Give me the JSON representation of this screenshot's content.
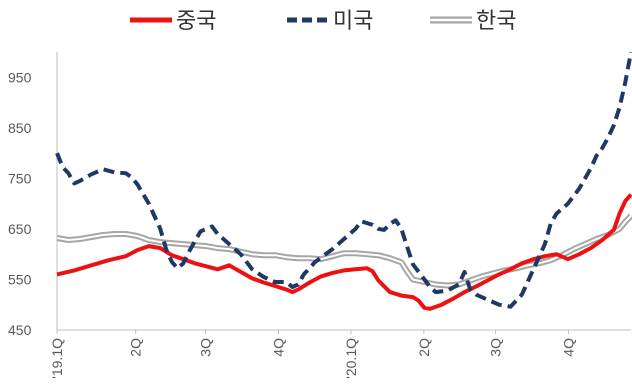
{
  "chart_data": {
    "type": "line",
    "title": "",
    "xlabel": "",
    "ylabel": "",
    "ylim": [
      450,
      1000
    ],
    "yticks": [
      450,
      550,
      650,
      750,
      850,
      950
    ],
    "grid": false,
    "legend_position": "top-center",
    "x_range": [
      0,
      100
    ],
    "x_tick_labels": [
      {
        "label": "'19.1Q",
        "x": 0
      },
      {
        "label": "2Q",
        "x": 13.7
      },
      {
        "label": "3Q",
        "x": 25.9
      },
      {
        "label": "4Q",
        "x": 38.6
      },
      {
        "label": "'20.1Q",
        "x": 51.2
      },
      {
        "label": "2Q",
        "x": 63.9
      },
      {
        "label": "3Q",
        "x": 76.4
      },
      {
        "label": "4Q",
        "x": 89.1
      }
    ],
    "series": [
      {
        "name": "중국",
        "color": "#ee1111",
        "style": "solid",
        "points": [
          [
            0,
            560
          ],
          [
            3,
            568
          ],
          [
            6,
            578
          ],
          [
            9,
            588
          ],
          [
            12,
            596
          ],
          [
            14,
            608
          ],
          [
            16,
            616
          ],
          [
            18,
            612
          ],
          [
            20,
            598
          ],
          [
            22,
            590
          ],
          [
            24,
            582
          ],
          [
            26,
            576
          ],
          [
            28,
            570
          ],
          [
            30,
            578
          ],
          [
            32,
            565
          ],
          [
            34,
            552
          ],
          [
            36,
            544
          ],
          [
            38,
            537
          ],
          [
            40,
            530
          ],
          [
            41,
            525
          ],
          [
            42,
            530
          ],
          [
            44,
            544
          ],
          [
            46,
            556
          ],
          [
            48,
            563
          ],
          [
            50,
            568
          ],
          [
            52,
            570
          ],
          [
            54,
            572
          ],
          [
            55,
            566
          ],
          [
            56,
            548
          ],
          [
            58,
            525
          ],
          [
            60,
            518
          ],
          [
            62,
            515
          ],
          [
            63,
            508
          ],
          [
            64,
            494
          ],
          [
            65,
            492
          ],
          [
            67,
            500
          ],
          [
            69,
            512
          ],
          [
            71,
            525
          ],
          [
            73,
            536
          ],
          [
            75,
            548
          ],
          [
            77,
            560
          ],
          [
            79,
            570
          ],
          [
            81,
            582
          ],
          [
            83,
            590
          ],
          [
            85,
            596
          ],
          [
            87,
            600
          ],
          [
            89,
            590
          ],
          [
            91,
            600
          ],
          [
            93,
            612
          ],
          [
            95,
            628
          ],
          [
            97,
            648
          ],
          [
            98,
            680
          ],
          [
            99,
            705
          ],
          [
            100,
            718
          ]
        ]
      },
      {
        "name": "미국",
        "color": "#1f3864",
        "style": "dashed",
        "points": [
          [
            0,
            800
          ],
          [
            1,
            772
          ],
          [
            2,
            760
          ],
          [
            3,
            740
          ],
          [
            4,
            745
          ],
          [
            6,
            758
          ],
          [
            8,
            768
          ],
          [
            10,
            762
          ],
          [
            12,
            760
          ],
          [
            13,
            752
          ],
          [
            14,
            738
          ],
          [
            16,
            700
          ],
          [
            18,
            650
          ],
          [
            19,
            610
          ],
          [
            20,
            585
          ],
          [
            21,
            572
          ],
          [
            22,
            582
          ],
          [
            23,
            605
          ],
          [
            25,
            645
          ],
          [
            27,
            655
          ],
          [
            28,
            640
          ],
          [
            30,
            620
          ],
          [
            32,
            600
          ],
          [
            34,
            570
          ],
          [
            36,
            555
          ],
          [
            38,
            545
          ],
          [
            40,
            545
          ],
          [
            41,
            535
          ],
          [
            42,
            540
          ],
          [
            43,
            560
          ],
          [
            45,
            585
          ],
          [
            48,
            610
          ],
          [
            50,
            630
          ],
          [
            52,
            650
          ],
          [
            53,
            665
          ],
          [
            55,
            658
          ],
          [
            56,
            650
          ],
          [
            57,
            648
          ],
          [
            58,
            660
          ],
          [
            59,
            667
          ],
          [
            60,
            650
          ],
          [
            61,
            615
          ],
          [
            62,
            580
          ],
          [
            64,
            550
          ],
          [
            65,
            535
          ],
          [
            66,
            525
          ],
          [
            68,
            528
          ],
          [
            70,
            540
          ],
          [
            71,
            565
          ],
          [
            72,
            530
          ],
          [
            73,
            520
          ],
          [
            75,
            510
          ],
          [
            77,
            500
          ],
          [
            79,
            496
          ],
          [
            81,
            520
          ],
          [
            83,
            570
          ],
          [
            85,
            620
          ],
          [
            86,
            660
          ],
          [
            87,
            680
          ],
          [
            89,
            700
          ],
          [
            91,
            730
          ],
          [
            93,
            770
          ],
          [
            94,
            795
          ],
          [
            95,
            810
          ],
          [
            96,
            830
          ],
          [
            97,
            855
          ],
          [
            98,
            890
          ],
          [
            99,
            940
          ],
          [
            100,
            1000
          ]
        ]
      },
      {
        "name": "한국",
        "color": "#a6a6a6",
        "style": "double",
        "points": [
          [
            0,
            632
          ],
          [
            2,
            628
          ],
          [
            4,
            630
          ],
          [
            6,
            634
          ],
          [
            8,
            638
          ],
          [
            10,
            640
          ],
          [
            12,
            640
          ],
          [
            14,
            636
          ],
          [
            16,
            628
          ],
          [
            18,
            624
          ],
          [
            20,
            622
          ],
          [
            22,
            620
          ],
          [
            24,
            618
          ],
          [
            26,
            616
          ],
          [
            28,
            612
          ],
          [
            30,
            610
          ],
          [
            32,
            605
          ],
          [
            34,
            600
          ],
          [
            36,
            598
          ],
          [
            38,
            598
          ],
          [
            40,
            594
          ],
          [
            42,
            592
          ],
          [
            44,
            592
          ],
          [
            46,
            590
          ],
          [
            48,
            596
          ],
          [
            50,
            602
          ],
          [
            52,
            602
          ],
          [
            54,
            600
          ],
          [
            56,
            598
          ],
          [
            58,
            592
          ],
          [
            60,
            584
          ],
          [
            61,
            566
          ],
          [
            62,
            550
          ],
          [
            64,
            545
          ],
          [
            66,
            540
          ],
          [
            68,
            538
          ],
          [
            70,
            540
          ],
          [
            72,
            548
          ],
          [
            74,
            556
          ],
          [
            76,
            562
          ],
          [
            78,
            568
          ],
          [
            80,
            572
          ],
          [
            82,
            578
          ],
          [
            84,
            582
          ],
          [
            86,
            588
          ],
          [
            88,
            598
          ],
          [
            90,
            610
          ],
          [
            92,
            620
          ],
          [
            94,
            630
          ],
          [
            96,
            638
          ],
          [
            98,
            650
          ],
          [
            99,
            664
          ],
          [
            100,
            676
          ]
        ]
      }
    ]
  }
}
